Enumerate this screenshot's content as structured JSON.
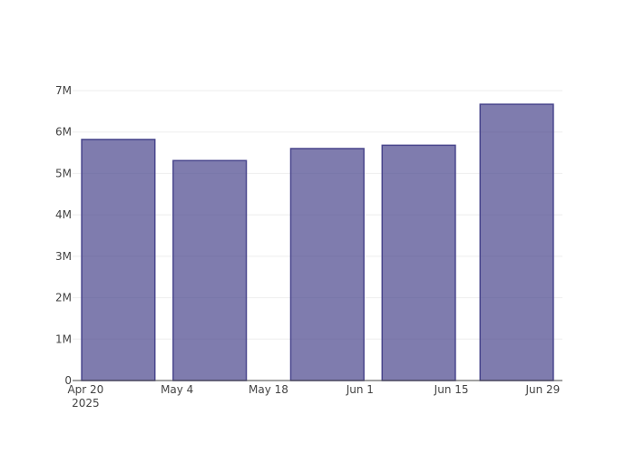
{
  "chart_data": {
    "type": "bar",
    "x": [
      "2025-04-25",
      "2025-05-09",
      "2025-05-27",
      "2025-06-10",
      "2025-06-25"
    ],
    "values": [
      5820000,
      5310000,
      5600000,
      5680000,
      6670000
    ],
    "color": "rgba(72,69,140,0.7)",
    "edge_color": "#48458c",
    "xlim": [
      "2025-04-18",
      "2025-07-02"
    ],
    "xticks": [
      {
        "value": "2025-04-20",
        "label": "Apr 20\n2025"
      },
      {
        "value": "2025-05-04",
        "label": "May 4"
      },
      {
        "value": "2025-05-18",
        "label": "May 18"
      },
      {
        "value": "2025-06-01",
        "label": "Jun 1"
      },
      {
        "value": "2025-06-15",
        "label": "Jun 15"
      },
      {
        "value": "2025-06-29",
        "label": "Jun 29"
      }
    ],
    "ylim": [
      0,
      7000000
    ],
    "yticks": [
      {
        "value": 0,
        "label": "0"
      },
      {
        "value": 1000000,
        "label": "1M"
      },
      {
        "value": 2000000,
        "label": "2M"
      },
      {
        "value": 3000000,
        "label": "3M"
      },
      {
        "value": 4000000,
        "label": "4M"
      },
      {
        "value": 5000000,
        "label": "5M"
      },
      {
        "value": 6000000,
        "label": "6M"
      },
      {
        "value": 7000000,
        "label": "7M"
      }
    ],
    "grid": true
  }
}
